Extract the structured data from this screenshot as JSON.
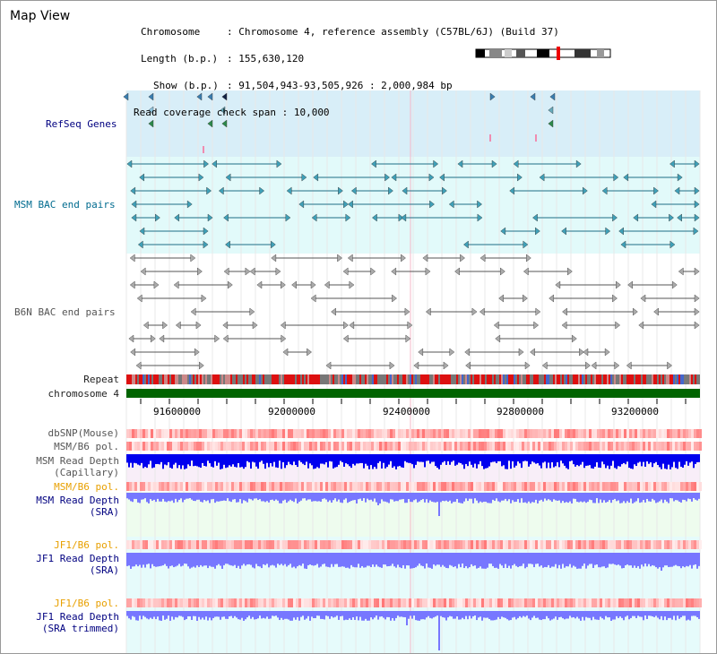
{
  "app": {
    "title": "Map View"
  },
  "info": {
    "chromosome_label": "Chromosome",
    "chromosome_value": ": Chromosome 4, reference assembly (C57BL/6J) (Build 37)",
    "length_label": "Length (b.p.)",
    "length_value": ": 155,630,120",
    "show_label": "Show (b.p.)",
    "show_value": ": 91,504,943-93,505,926 : 2,000,984 bp",
    "coverage_label": "Read coverage check span",
    "coverage_value": ": 10,000"
  },
  "tracks": {
    "refseq": "RefSeq Genes",
    "msm_bac": "MSM BAC end pairs",
    "b6n_bac": "B6N BAC end pairs",
    "repeat": "Repeat",
    "chromosome": "chromosome 4",
    "dbsnp": "dbSNP(Mouse)",
    "msm_b6_pol": "MSM/B6 pol.",
    "msm_depth_cap": "MSM Read Depth\n(Capillary)",
    "msm_b6_pol2": "MSM/B6 pol.",
    "msm_depth_sra": "MSM Read Depth\n(SRA)",
    "jf1_b6_pol": "JF1/B6 pol.",
    "jf1_depth_sra": "JF1 Read Depth\n(SRA)",
    "jf1_b6_pol2": "JF1/B6 pol.",
    "jf1_depth_trim": "JF1 Read Depth\n(SRA trimmed)"
  },
  "axis": {
    "ticks": [
      "91600000",
      "92000000",
      "92400000",
      "92800000",
      "93200000"
    ]
  },
  "colors": {
    "refseq_bg": "#d8eef8",
    "msm_bg": "#e2fafa",
    "chromosome": "#006400",
    "depth_dark": "#0000ee",
    "depth_light": "#7777ff",
    "pol": "#ff7070"
  }
}
